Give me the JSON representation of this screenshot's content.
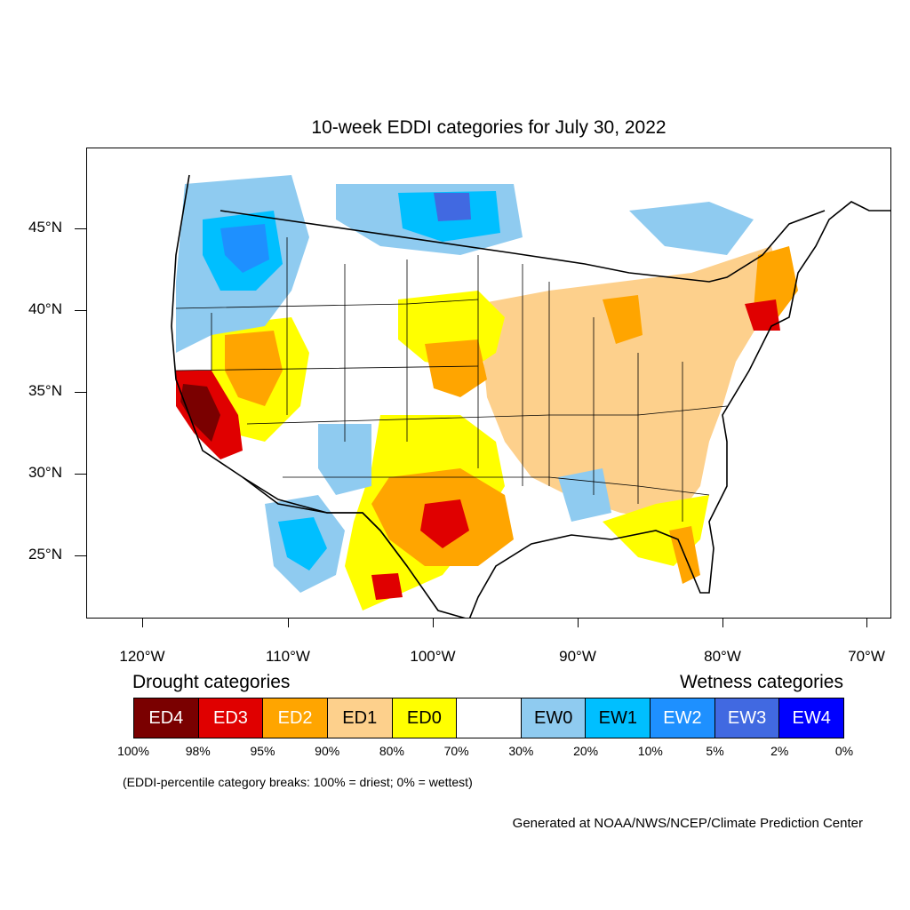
{
  "title": "10-week EDDI categories for July 30, 2022",
  "y_axis": {
    "labels": [
      {
        "text": "45°N",
        "lat": 45
      },
      {
        "text": "40°N",
        "lat": 40
      },
      {
        "text": "35°N",
        "lat": 35
      },
      {
        "text": "30°N",
        "lat": 30
      },
      {
        "text": "25°N",
        "lat": 25
      }
    ]
  },
  "x_axis": {
    "labels": [
      {
        "text": "120°W",
        "lon": -120
      },
      {
        "text": "110°W",
        "lon": -110
      },
      {
        "text": "100°W",
        "lon": -100
      },
      {
        "text": "90°W",
        "lon": -90
      },
      {
        "text": "80°W",
        "lon": -80
      },
      {
        "text": "70°W",
        "lon": -70
      }
    ]
  },
  "legend": {
    "drought_heading": "Drought categories",
    "wetness_heading": "Wetness categories",
    "categories": [
      {
        "label": "ED4",
        "color": "#7a0000",
        "text_color": "#ffffff"
      },
      {
        "label": "ED3",
        "color": "#e00000",
        "text_color": "#ffffff"
      },
      {
        "label": "ED2",
        "color": "#ffa500",
        "text_color": "#ffffff"
      },
      {
        "label": "ED1",
        "color": "#fdd08c",
        "text_color": "#000000"
      },
      {
        "label": "ED0",
        "color": "#ffff00",
        "text_color": "#000000"
      },
      {
        "label": "",
        "color": "#ffffff",
        "text_color": "#000000"
      },
      {
        "label": "EW0",
        "color": "#8fcbf0",
        "text_color": "#000000"
      },
      {
        "label": "EW1",
        "color": "#00bfff",
        "text_color": "#000000"
      },
      {
        "label": "EW2",
        "color": "#1e90ff",
        "text_color": "#ffffff"
      },
      {
        "label": "EW3",
        "color": "#4169e1",
        "text_color": "#ffffff"
      },
      {
        "label": "EW4",
        "color": "#0000ff",
        "text_color": "#ffffff"
      }
    ],
    "breaks": [
      "100%",
      "98%",
      "95%",
      "90%",
      "80%",
      "70%",
      "30%",
      "20%",
      "10%",
      "5%",
      "2%",
      "0%"
    ]
  },
  "note": "(EDDI-percentile category breaks: 100% = driest; 0% = wettest)",
  "credit": "Generated at NOAA/NWS/NCEP/Climate Prediction Center"
}
